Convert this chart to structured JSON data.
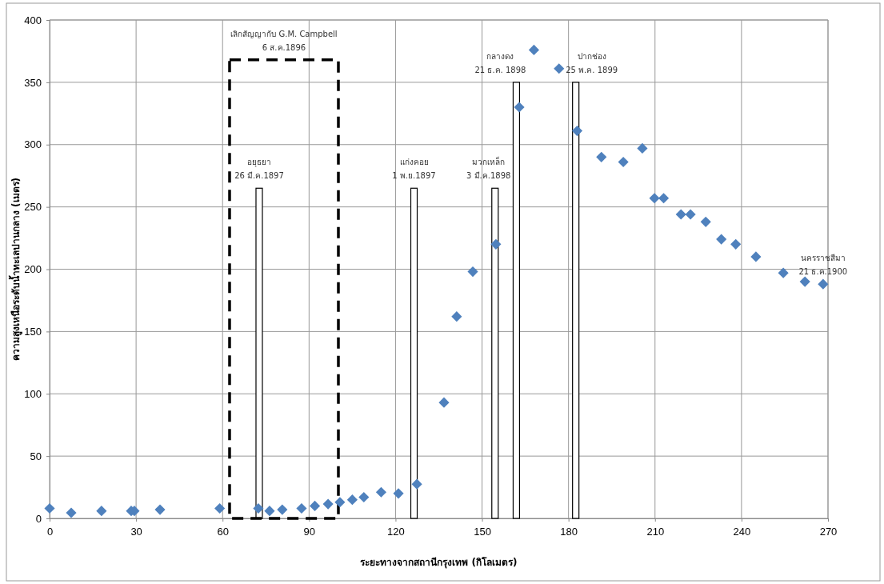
{
  "chart_data": {
    "type": "scatter",
    "xlabel": "ระยะทางจากสถานีกรุงเทพ (กิโลเมตร)",
    "ylabel": "ความสูงเหนือระดับน้ำทะเลปานกลาง (เมตร)",
    "xlim": [
      0,
      270
    ],
    "xticks": [
      0,
      30,
      60,
      90,
      120,
      150,
      180,
      210,
      240,
      270
    ],
    "ylim": [
      0,
      400
    ],
    "yticks": [
      0,
      50,
      100,
      150,
      200,
      250,
      300,
      350,
      400
    ],
    "grid": true,
    "marker": "diamond",
    "series": [
      {
        "color": "#4f81bd",
        "x": [
          0,
          7.5,
          18,
          28.3,
          29.4,
          38.3,
          59,
          72.4,
          76.3,
          80.7,
          87.4,
          92,
          96.6,
          100.7,
          105,
          109,
          115,
          121,
          127.4,
          136.8,
          141.2,
          146.8,
          154.8,
          162.9,
          168,
          176.7,
          183,
          191.4,
          199,
          205.6,
          209.8,
          213,
          219,
          222.3,
          227.6,
          233,
          238,
          245,
          254.5,
          262,
          268.3
        ],
        "values": [
          8,
          4.5,
          6,
          6,
          6,
          7,
          8,
          8,
          6,
          7,
          8,
          10,
          11.5,
          13,
          15,
          17,
          21,
          20,
          27.5,
          93,
          162,
          198,
          220,
          330,
          376,
          361,
          311,
          290,
          286,
          297,
          257,
          257,
          244,
          244,
          238,
          224,
          220,
          210,
          197,
          190,
          188
        ]
      },
      {
        "type": "bar",
        "color": "#ffffff",
        "x": [
          72.7,
          126.4,
          154.5,
          161.9,
          182.5
        ],
        "values": [
          265,
          265,
          265,
          350,
          350
        ]
      },
      {
        "type": "bar",
        "color": "#000000",
        "line_style": "dashed",
        "x": [
          81.3
        ],
        "values": [
          368
        ]
      }
    ],
    "annotations": [
      {
        "text": "เลิกสัญญากับ G.M. Campbell\n6 ส.ค.1896",
        "x": 81.3,
        "y": 368
      },
      {
        "text": "อยุธยา\n26 มี.ค.1897",
        "x": 72.7,
        "y": 265
      },
      {
        "text": "แก่งคอย\n1 พ.ย.1897",
        "x": 126.4,
        "y": 265
      },
      {
        "text": "มวกเหล็ก\n3 มี.ค.1898",
        "x": 154.5,
        "y": 265
      },
      {
        "text": "กลางดง\n21 ธ.ค. 1898",
        "x": 161.9,
        "y": 350
      },
      {
        "text": "ปากช่อง\n25 พ.ค. 1899",
        "x": 182.5,
        "y": 350
      },
      {
        "text": "นครราชสีมา\n21 ธ.ค.1900",
        "x": 268.3,
        "y": 188
      }
    ]
  }
}
